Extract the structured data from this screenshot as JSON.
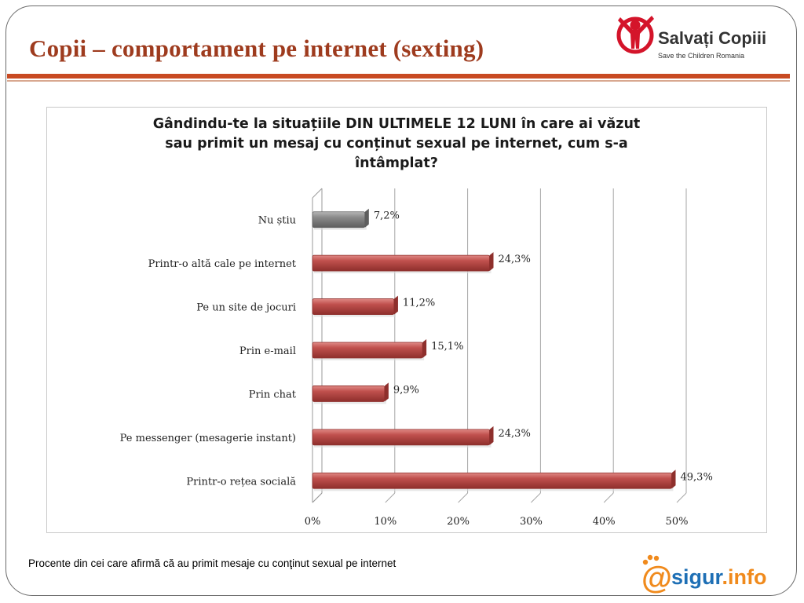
{
  "header": {
    "title": "Copii – comportament pe internet (sexting)"
  },
  "logo_top": {
    "brand": "Salvați Copiii",
    "tagline": "Save the Children Romania",
    "icon": "save-the-children-figure-icon",
    "color": "#d4142a"
  },
  "chart_data": {
    "type": "bar",
    "orientation": "horizontal",
    "title_lines": [
      "Gândindu-te la situațiile DIN ULTIMELE 12 LUNI în care ai văzut",
      "sau primit un mesaj cu conținut sexual pe internet, cum s-a",
      "întâmplat?"
    ],
    "categories": [
      "Nu știu",
      "Printr-o altă cale pe internet",
      "Pe un site de jocuri",
      "Prin e-mail",
      "Prin chat",
      "Pe messenger (mesagerie instant)",
      "Printr-o rețea socială"
    ],
    "values": [
      7.2,
      24.3,
      11.2,
      15.1,
      9.9,
      24.3,
      49.3
    ],
    "value_labels": [
      "7,2%",
      "24,3%",
      "11,2%",
      "15,1%",
      "9,9%",
      "24,3%",
      "49,3%"
    ],
    "colors": [
      "#8a8a8a",
      "#c0504d",
      "#c0504d",
      "#c0504d",
      "#c0504d",
      "#c0504d",
      "#c0504d"
    ],
    "xlim": [
      0,
      50
    ],
    "xticks": [
      0,
      10,
      20,
      30,
      40,
      50
    ],
    "xtick_labels": [
      "0%",
      "10%",
      "20%",
      "30%",
      "40%",
      "50%"
    ],
    "grid": true,
    "legend": "none",
    "style": "3d"
  },
  "footer": {
    "note": "Procente din cei care afirmă că au primit mesaje cu conţinut sexual pe internet",
    "logo_at": "@",
    "logo_word1": "sigur",
    "logo_word2": ".info"
  }
}
